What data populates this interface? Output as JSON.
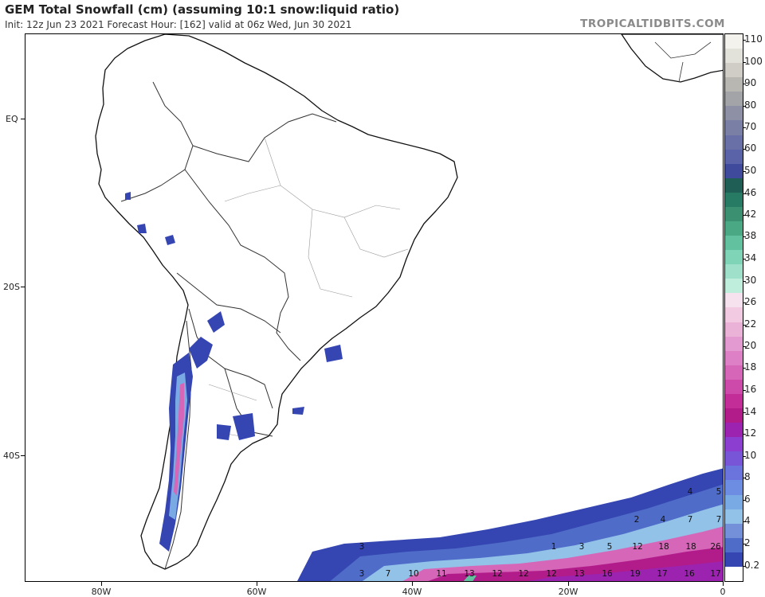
{
  "header": {
    "title": "GEM Total Snowfall (cm) (assuming 10:1 snow:liquid ratio)",
    "subtitle": "Init: 12z Jun 23 2021   Forecast Hour: [162]   valid at 06z Wed, Jun 30 2021",
    "brand": "TROPICALTIDBITS.COM"
  },
  "axes": {
    "lat_labels": [
      {
        "label": "EQ"
      },
      {
        "label": "20S"
      },
      {
        "label": "40S"
      }
    ],
    "lon_labels": [
      {
        "label": "80W"
      },
      {
        "label": "60W"
      },
      {
        "label": "40W"
      },
      {
        "label": "20W"
      },
      {
        "label": "0"
      }
    ]
  },
  "colorbar": {
    "labels": [
      "110",
      "100",
      "90",
      "80",
      "70",
      "60",
      "50",
      "46",
      "42",
      "38",
      "34",
      "30",
      "26",
      "22",
      "20",
      "18",
      "16",
      "14",
      "12",
      "10",
      "8",
      "6",
      "4",
      "2",
      "0.2"
    ],
    "colors": [
      "#f3f2ec",
      "#e3e2da",
      "#cfcdc5",
      "#b8b7b2",
      "#a3a4a8",
      "#8e91a6",
      "#7a7fa5",
      "#6970a7",
      "#5a62a8",
      "#3f4a9c",
      "#1f5e54",
      "#277a63",
      "#3a9070",
      "#4aa885",
      "#62c2a0",
      "#7fd3b6",
      "#9fe0ca",
      "#bfeedd",
      "#f6e2ef",
      "#f2cbe3",
      "#eab2d7",
      "#e39ad0",
      "#dd80c5",
      "#d666b8",
      "#cd4aaa",
      "#c22d97",
      "#b11c8a",
      "#9c23b0",
      "#8b3ed0",
      "#7755d6",
      "#6b73dc",
      "#6d8de2",
      "#7aaae4",
      "#93c2e8",
      "#7490d9",
      "#4f6cc8",
      "#3546b2",
      "#ffffff"
    ],
    "color_semantics": "white = none, blue = light, pink/magenta = moderate, green = heavy"
  },
  "map": {
    "ocean_values": [
      {
        "text": "4"
      },
      {
        "text": "5"
      },
      {
        "text": "2"
      },
      {
        "text": "4"
      },
      {
        "text": "7"
      },
      {
        "text": "7"
      },
      {
        "text": "3"
      },
      {
        "text": "1"
      },
      {
        "text": "3"
      },
      {
        "text": "5"
      },
      {
        "text": "12"
      },
      {
        "text": "18"
      },
      {
        "text": "18"
      },
      {
        "text": "26"
      },
      {
        "text": "3"
      },
      {
        "text": "7"
      },
      {
        "text": "10"
      },
      {
        "text": "11"
      },
      {
        "text": "13"
      },
      {
        "text": "12"
      },
      {
        "text": "12"
      },
      {
        "text": "12"
      },
      {
        "text": "13"
      },
      {
        "text": "16"
      },
      {
        "text": "19"
      },
      {
        "text": "17"
      },
      {
        "text": "16"
      },
      {
        "text": "17"
      }
    ]
  }
}
